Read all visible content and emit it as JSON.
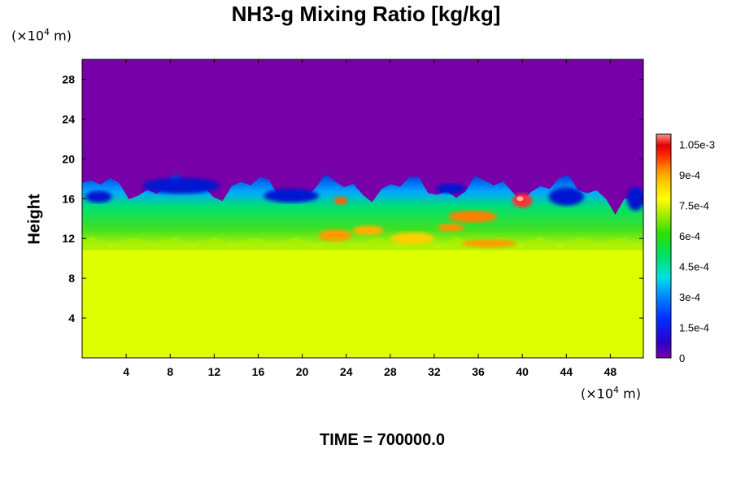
{
  "chart_data": {
    "type": "heatmap",
    "title": "NH3-g Mixing Ratio [kg/kg]",
    "ylabel": "Height",
    "x_unit_prefix": "(×10",
    "x_unit_exp": "4",
    "x_unit_suffix": " m)",
    "y_unit_prefix": "(×10",
    "y_unit_exp": "4",
    "y_unit_suffix": " m)",
    "xlim": [
      0,
      51
    ],
    "ylim": [
      0,
      30
    ],
    "x_ticks": [
      4,
      8,
      12,
      16,
      20,
      24,
      28,
      32,
      36,
      40,
      44,
      48
    ],
    "x_tick_labels": [
      "4",
      "8",
      "12",
      "16",
      "20",
      "24",
      "28",
      "32",
      "36",
      "40",
      "44",
      "48"
    ],
    "y_ticks": [
      4,
      8,
      12,
      16,
      20,
      24,
      28
    ],
    "y_tick_labels": [
      "4",
      "8",
      "12",
      "16",
      "20",
      "24",
      "28"
    ],
    "colorbar": {
      "min": 0,
      "max": 0.0011,
      "ticks": [
        0,
        0.00015,
        0.0003,
        0.00045,
        0.0006,
        0.00075,
        0.0009,
        0.00105
      ],
      "tick_labels": [
        "0",
        "1.5e-4",
        "3e-4",
        "4.5e-4",
        "6e-4",
        "7.5e-4",
        "9e-4",
        "1.05e-3"
      ]
    },
    "regions": {
      "lower_value": 0.00078,
      "upper_value": 0,
      "mixing_layer_bottom": 11,
      "mixing_layer_top": 18
    },
    "footer": "TIME = 700000.0"
  },
  "colors": {
    "upper": "#7800a8",
    "lower": "#ddff00"
  }
}
